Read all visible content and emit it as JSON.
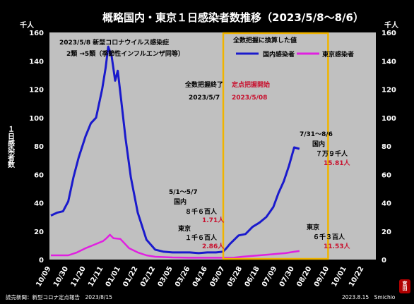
{
  "chart_data": {
    "type": "line",
    "title": "概略国内・東京１日感染者数推移（2023/5/8〜8/6）",
    "unit_left": "千人",
    "unit_right": "千人",
    "ylabel": "１日感染者数",
    "ylim": [
      0,
      160
    ],
    "yticks": [
      0,
      20,
      40,
      60,
      80,
      100,
      120,
      140,
      160
    ],
    "grid": false,
    "legend_position": "top-right (inside highlighted box)",
    "legend_title": "全数把握に換算した値",
    "xtick_labels": [
      "10/09",
      "10/30",
      "11/20",
      "12/11",
      "01/01",
      "01/22",
      "02/12",
      "03/05",
      "03/26",
      "04/16",
      "05/07",
      "05/28",
      "06/18",
      "07/09",
      "07/30",
      "08/20",
      "09/10",
      "10/01",
      "10/22"
    ],
    "series": [
      {
        "name": "国内感染者",
        "color": "#1a1acc",
        "x": [
          0,
          0.35,
          0.7,
          1.0,
          1.3,
          1.6,
          2.0,
          2.3,
          2.6,
          2.95,
          3.15,
          3.3,
          3.5,
          3.7,
          3.85,
          4.05,
          4.3,
          4.6,
          5.0,
          5.5,
          6.0,
          6.5,
          7.0,
          7.5,
          8.0,
          8.5,
          9.0,
          9.5,
          9.9,
          10.1,
          10.3,
          10.8,
          11.2,
          11.6,
          12.0,
          12.4,
          12.8,
          13.1,
          13.4,
          13.7,
          14.0,
          14.3
        ],
        "values": [
          31,
          33,
          34,
          41,
          58,
          72,
          87,
          96,
          100,
          120,
          135,
          150,
          143,
          126,
          133,
          112,
          85,
          58,
          33,
          14,
          7,
          5.5,
          5,
          5,
          5,
          4.5,
          5,
          5,
          5.5,
          8,
          11,
          17,
          18,
          23,
          26,
          30,
          37,
          47,
          55,
          66,
          79,
          78
        ]
      },
      {
        "name": "東京感染者",
        "color": "#e020e0",
        "x": [
          0,
          0.5,
          1.0,
          1.5,
          2.0,
          2.5,
          3.0,
          3.2,
          3.4,
          3.6,
          4.0,
          4.5,
          5.0,
          5.5,
          6.0,
          7.0,
          8.0,
          9.0,
          10.0,
          10.5,
          11.0,
          11.5,
          12.0,
          12.5,
          13.0,
          13.5,
          14.0,
          14.3
        ],
        "values": [
          3,
          3,
          3,
          5,
          8,
          10.5,
          13,
          15,
          17.5,
          15,
          14.5,
          8,
          5,
          3,
          2,
          1.5,
          1.3,
          1.3,
          1.3,
          1.3,
          2,
          2.5,
          3,
          3.5,
          4,
          4.5,
          5.5,
          6
        ]
      }
    ],
    "highlight_box": {
      "x_from": 10.0,
      "x_to": 15.95
    },
    "annotations": {
      "change_title": "2023/5/8 新型コロナウイルス感染症",
      "change_detail": "2類 →5類（季節性インフルエンザ同等）",
      "end_label": "全数把握終了",
      "end_date": "2023/5/7",
      "start_label": "定点把握開始",
      "start_date": "2023/5/08",
      "recent_period": "7/31〜8/6",
      "recent_national_label": "国内",
      "recent_national": "７万９千人",
      "recent_national_perk": "15.81人",
      "week_period": "5/1〜5/7",
      "week_national_label": "国内",
      "week_national": "８千６百人",
      "week_national_perk": "1.71人",
      "week_tokyo_label": "東京",
      "week_tokyo": "１千６百人",
      "week_tokyo_perk": "2.86人",
      "recent_tokyo_label": "東京",
      "recent_tokyo": "６千３百人",
      "recent_tokyo_perk": "11.53人"
    },
    "footer_left": "読売新聞：新型コロナ定点報告　2023/8/15",
    "footer_right": "2023.8.15　Smichio",
    "stamp_text": "宮田"
  }
}
